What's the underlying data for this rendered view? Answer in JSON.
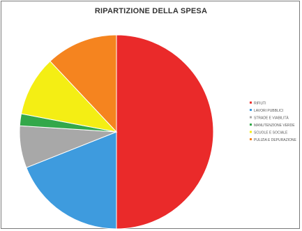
{
  "chart_data": {
    "type": "pie",
    "title": "RIPARTIZIONE DELLA SPESA",
    "legend_position": "right",
    "slices": [
      {
        "label": "RIFIUTI",
        "value": 50.0,
        "color": "#ea2a2a"
      },
      {
        "label": "LAVORI PUBBLICI",
        "value": 19.0,
        "color": "#3e9bde"
      },
      {
        "label": "STRADE E VIABILITÀ",
        "value": 7.0,
        "color": "#a8a8a8"
      },
      {
        "label": "MANUTENZIONE VERDE",
        "value": 2.0,
        "color": "#33a84a"
      },
      {
        "label": "SCUOLE E SOCIALE",
        "value": 10.0,
        "color": "#f4ee14"
      },
      {
        "label": "PULIZIA E DEPURAZIONE",
        "value": 12.0,
        "color": "#f5841f"
      }
    ]
  }
}
